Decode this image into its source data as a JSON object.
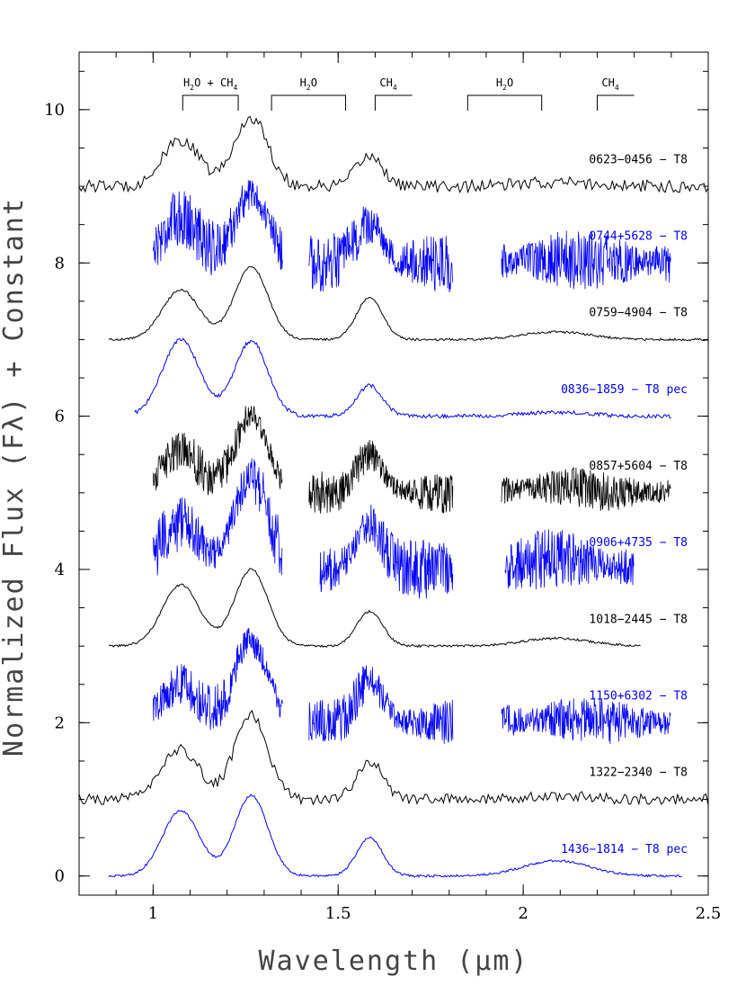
{
  "chart_data": {
    "type": "line",
    "xlabel": "Wavelength (μm)",
    "ylabel": "Normalized Flux (Fλ) + Constant",
    "xlim": [
      0.8,
      2.5
    ],
    "ylim": [
      -0.25,
      10.75
    ],
    "x_ticks": [
      1,
      1.5,
      2,
      2.5
    ],
    "x_tick_labels": [
      "1",
      "1.5",
      "2",
      "2.5"
    ],
    "y_ticks": [
      0,
      2,
      4,
      6,
      8,
      10
    ],
    "y_tick_labels": [
      "0",
      "2",
      "4",
      "6",
      "8",
      "10"
    ],
    "grid": false,
    "band_labels": [
      {
        "main": "H",
        "sub": "2",
        "rest": "O + CH",
        "sub2": "4",
        "x_start": 1.08,
        "x_end": 1.23
      },
      {
        "main": "H",
        "sub": "2",
        "rest": "O",
        "sub2": "",
        "x_start": 1.32,
        "x_end": 1.52
      },
      {
        "main": "CH",
        "sub": "4",
        "rest": "",
        "sub2": "",
        "x_start": 1.6,
        "x_end": 1.7
      },
      {
        "main": "H",
        "sub": "2",
        "rest": "O",
        "sub2": "",
        "x_start": 1.85,
        "x_end": 2.05
      },
      {
        "main": "CH",
        "sub": "4",
        "rest": "",
        "sub2": "",
        "x_start": 2.2,
        "x_end": 2.3
      }
    ],
    "series": [
      {
        "name": "0623−0456 − T8",
        "color": "#000000",
        "offset": 9,
        "noise": 0.08,
        "instrument": "lowres",
        "x_range": [
          0.8,
          2.5
        ],
        "gaps": [],
        "peaks": [
          0.6,
          0.9,
          0.4,
          0.05
        ]
      },
      {
        "name": "0744+5628 − T8",
        "color": "#0000ff",
        "offset": 8,
        "noise": 0.28,
        "instrument": "hires",
        "x_range": [
          1.0,
          2.4
        ],
        "gaps": [
          [
            1.35,
            1.42
          ],
          [
            1.81,
            1.94
          ]
        ],
        "peaks": [
          0.6,
          0.9,
          0.5,
          0.05
        ]
      },
      {
        "name": "0759−4904 − T8",
        "color": "#000000",
        "offset": 7,
        "noise": 0.015,
        "instrument": "smooth",
        "x_range": [
          0.88,
          2.5
        ],
        "gaps": [],
        "peaks": [
          0.65,
          0.95,
          0.55,
          0.1
        ]
      },
      {
        "name": "0836−1859 − T8 pec",
        "color": "#0000ff",
        "offset": 6,
        "noise": 0.025,
        "instrument": "smooth",
        "x_range": [
          0.95,
          2.4
        ],
        "gaps": [],
        "peaks": [
          1.0,
          0.98,
          0.4,
          0.05
        ]
      },
      {
        "name": "0857+5604 − T8",
        "color": "#000000",
        "offset": 5,
        "noise": 0.2,
        "instrument": "hires",
        "x_range": [
          1.0,
          2.4
        ],
        "gaps": [
          [
            1.35,
            1.42
          ],
          [
            1.81,
            1.94
          ]
        ],
        "peaks": [
          0.55,
          1.0,
          0.5,
          0.08
        ]
      },
      {
        "name": "0906+4735 − T8",
        "color": "#0000ff",
        "offset": 4,
        "noise": 0.28,
        "instrument": "hires",
        "x_range": [
          1.0,
          2.3
        ],
        "gaps": [
          [
            1.35,
            1.45
          ],
          [
            1.81,
            1.95
          ]
        ],
        "peaks": [
          0.6,
          1.2,
          0.6,
          0.15
        ]
      },
      {
        "name": "1018−2445 − T8",
        "color": "#000000",
        "offset": 3,
        "noise": 0.015,
        "instrument": "smooth",
        "x_range": [
          0.88,
          2.32
        ],
        "gaps": [],
        "peaks": [
          0.8,
          1.0,
          0.45,
          0.1
        ]
      },
      {
        "name": "1150+6302 − T8",
        "color": "#0000ff",
        "offset": 2,
        "noise": 0.22,
        "instrument": "hires",
        "x_range": [
          1.0,
          2.4
        ],
        "gaps": [
          [
            1.35,
            1.42
          ],
          [
            1.81,
            1.94
          ]
        ],
        "peaks": [
          0.5,
          1.05,
          0.55,
          0.05
        ]
      },
      {
        "name": "1322−2340 − T8",
        "color": "#000000",
        "offset": 1,
        "noise": 0.07,
        "instrument": "lowres",
        "x_range": [
          0.8,
          2.5
        ],
        "gaps": [],
        "peaks": [
          0.65,
          1.1,
          0.5,
          0.05
        ]
      },
      {
        "name": "1436−1814 − T8 pec",
        "color": "#0000ff",
        "offset": 0,
        "noise": 0.015,
        "instrument": "smooth",
        "x_range": [
          0.88,
          2.43
        ],
        "gaps": [],
        "peaks": [
          0.85,
          1.05,
          0.5,
          0.2
        ]
      }
    ]
  }
}
